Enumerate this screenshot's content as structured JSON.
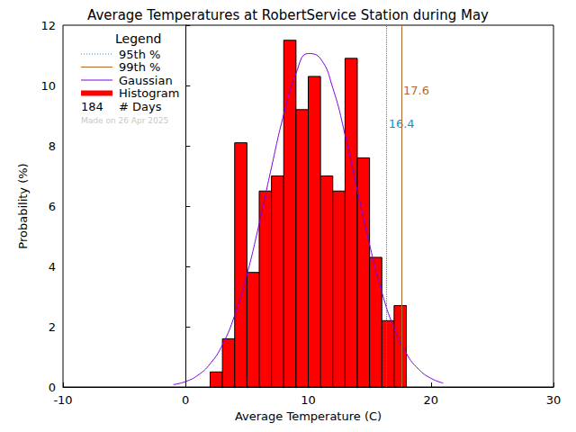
{
  "chart_data": {
    "type": "histogram",
    "title": "Average Temperatures at RobertService Station during May",
    "xlabel": "Average Temperature (C)",
    "ylabel": "Probability (%)",
    "bins": [
      2,
      3,
      4,
      5,
      6,
      7,
      8,
      9,
      10,
      11,
      12,
      13,
      14,
      15,
      16,
      17,
      18
    ],
    "series": [
      {
        "name": "Histogram",
        "type": "bar",
        "color": "#ff0000",
        "values": [
          0.5,
          1.6,
          8.1,
          3.8,
          6.5,
          7.0,
          11.5,
          9.2,
          10.3,
          7.0,
          6.5,
          10.9,
          7.6,
          4.3,
          2.2,
          2.7
        ]
      },
      {
        "name": "Gaussian",
        "type": "line",
        "color": "#8000e0",
        "x": [
          -1,
          0,
          1,
          2,
          3,
          4,
          5,
          6,
          7,
          8,
          9,
          10,
          11,
          12,
          13,
          14,
          15,
          16,
          17,
          18,
          19,
          20,
          21
        ],
        "values": [
          0.08,
          0.18,
          0.39,
          0.77,
          1.4,
          2.38,
          3.73,
          5.42,
          7.28,
          9.04,
          10.4,
          11.06,
          10.89,
          9.92,
          8.37,
          6.53,
          4.72,
          3.15,
          1.95,
          1.11,
          0.59,
          0.29,
          0.13
        ]
      }
    ],
    "reference_lines": [
      {
        "name": "95th %",
        "x": 16.4,
        "color": "#1f8fbf",
        "line_style": "dotted"
      },
      {
        "name": "99th %",
        "x": 17.6,
        "color": "#b06a30",
        "line_style": "solid"
      }
    ],
    "legend_title": "Legend",
    "legend": "upper left",
    "days": 184,
    "days_label": "# Days",
    "annotations": [
      "Made on 26 Apr 2025"
    ],
    "xlim": [
      -10,
      30
    ],
    "xticks": [
      -10,
      0,
      10,
      20,
      30
    ],
    "ylim": [
      0,
      12
    ],
    "yticks": [
      0,
      2,
      4,
      6,
      8,
      10,
      12
    ],
    "grid": false
  }
}
